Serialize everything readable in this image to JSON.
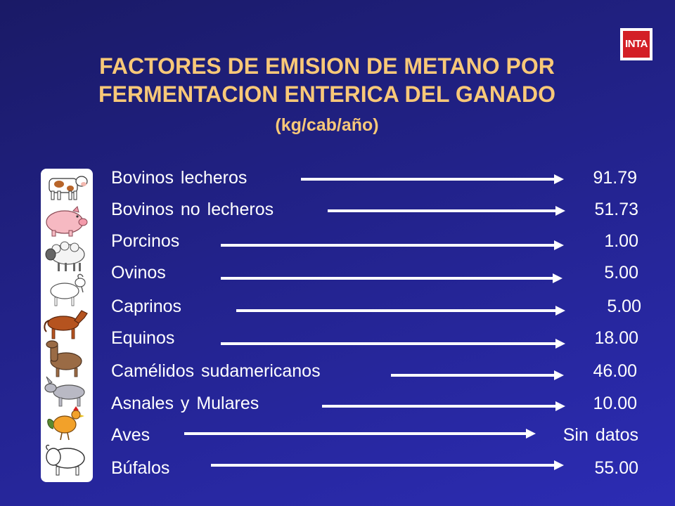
{
  "logo": {
    "text": "INTA"
  },
  "title": {
    "line1": "FACTORES DE EMISION DE METANO POR",
    "line2": "FERMENTACION ENTERICA DEL GANADO",
    "units": "(kg/cab/año)"
  },
  "animal_icons": [
    "cow-icon",
    "pig-icon",
    "sheep-icon",
    "goat-icon",
    "horse-icon",
    "llama-icon",
    "donkey-icon",
    "rooster-icon",
    "buffalo-icon"
  ],
  "rows": [
    {
      "label": "Bovinos lecheros",
      "value": "91.79"
    },
    {
      "label": "Bovinos no lecheros",
      "value": "51.73"
    },
    {
      "label": "Porcinos",
      "value": "1.00"
    },
    {
      "label": "Ovinos",
      "value": "5.00"
    },
    {
      "label": "Caprinos",
      "value": "5.00"
    },
    {
      "label": "Equinos",
      "value": "18.00"
    },
    {
      "label": "Camélidos sudamericanos",
      "value": "46.00"
    },
    {
      "label": "Asnales y Mulares",
      "value": "10.00"
    },
    {
      "label": "Aves",
      "value": "Sin datos"
    },
    {
      "label": "Búfalos",
      "value": "55.00"
    }
  ]
}
